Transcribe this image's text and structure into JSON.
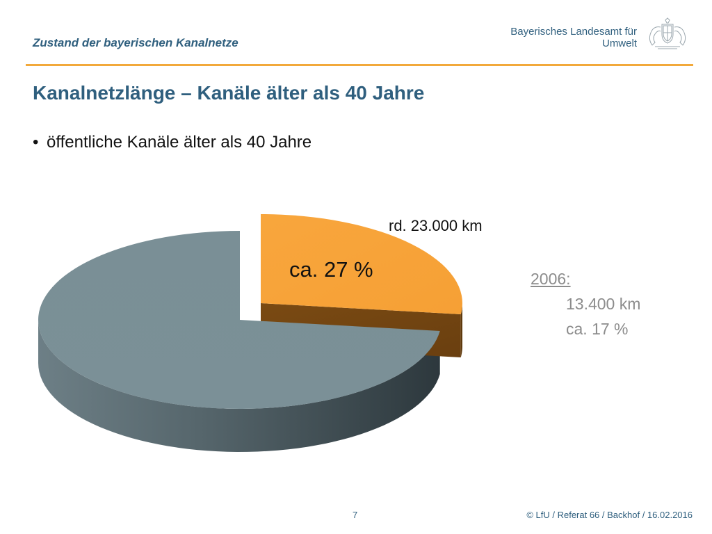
{
  "header": {
    "title": "Zustand der bayerischen Kanalnetze",
    "org_line1": "Bayerisches Landesamt für",
    "org_line2": "Umwelt",
    "logo_icon": "bavarian-coat-of-arms-icon"
  },
  "slide": {
    "title": "Kanalnetzlänge – Kanäle älter als 40 Jahre",
    "bullet": "öffentliche Kanäle älter als 40 Jahre"
  },
  "colors": {
    "accent_rule": "#f2a93b",
    "title_blue": "#2f5f7e",
    "slice_highlight": "#f7a43c",
    "slice_rest": "#7a8f96"
  },
  "chart_data": {
    "type": "pie",
    "style": "3d-exploded",
    "slices": [
      {
        "value": 27,
        "label": "ca. 27 %",
        "annotation": "rd. 23.000 km",
        "color": "#f7a43c"
      },
      {
        "value": 73,
        "label": "",
        "annotation": "",
        "color": "#7a8f96"
      }
    ]
  },
  "side_note": {
    "year": "2006:",
    "km": "13.400 km",
    "pct": "ca. 17 %"
  },
  "footer": {
    "page_number": "7",
    "credit": "© LfU / Referat 66 / Backhof / 16.02.2016"
  }
}
